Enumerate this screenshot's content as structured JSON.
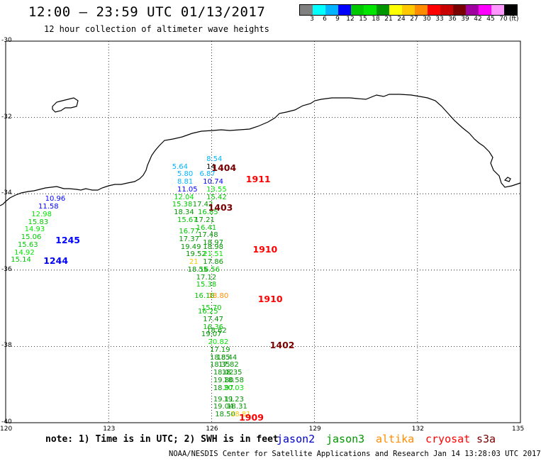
{
  "header": {
    "title": "12:00 – 23:59 UTC 01/13/2017",
    "subtitle": "12 hour collection of altimeter wave heights"
  },
  "colorbar": {
    "colors": [
      "#808080",
      "#00ffff",
      "#00b4ff",
      "#0000ff",
      "#00c800",
      "#00e600",
      "#009600",
      "#ffff00",
      "#ffc800",
      "#ff8c00",
      "#ff0000",
      "#c80000",
      "#780000",
      "#a000a0",
      "#ff00ff",
      "#ff96ff",
      "#000000"
    ],
    "ticks": [
      "3",
      "6",
      "9",
      "12",
      "15",
      "18",
      "21",
      "24",
      "27",
      "30",
      "33",
      "36",
      "39",
      "42",
      "45",
      "70"
    ],
    "unit": "(ft)"
  },
  "axes": {
    "x_ticks": [
      "120",
      "123",
      "126",
      "129",
      "132",
      "135"
    ],
    "y_ticks": [
      "-30",
      "-32",
      "-34",
      "-36",
      "-38",
      "-40"
    ],
    "lon_range": [
      120,
      135
    ],
    "lat_range": [
      -40,
      -30
    ]
  },
  "wave_heights": [
    {
      "t": "8.54",
      "c": "#00b4ff",
      "lon": 125.85,
      "lat": -33.1
    },
    {
      "t": "5.64",
      "c": "#00b4ff",
      "lon": 124.85,
      "lat": -33.3
    },
    {
      "t": "14",
      "c": "#000000",
      "lon": 125.85,
      "lat": -33.3
    },
    {
      "t": "5.80",
      "c": "#00b4ff",
      "lon": 125.0,
      "lat": -33.5
    },
    {
      "t": "6.87",
      "c": "#00b4ff",
      "lon": 125.65,
      "lat": -33.5
    },
    {
      "t": "8.81",
      "c": "#00b4ff",
      "lon": 125.0,
      "lat": -33.7
    },
    {
      "t": "10.74",
      "c": "#0000ff",
      "lon": 125.75,
      "lat": -33.7
    },
    {
      "t": "11.05",
      "c": "#0000ff",
      "lon": 125.0,
      "lat": -33.9
    },
    {
      "t": "13.55",
      "c": "#00e600",
      "lon": 125.85,
      "lat": -33.9
    },
    {
      "t": "12.04",
      "c": "#00e600",
      "lon": 124.9,
      "lat": -34.1
    },
    {
      "t": "15.42",
      "c": "#00c800",
      "lon": 125.85,
      "lat": -34.1
    },
    {
      "t": "15.38",
      "c": "#00c800",
      "lon": 124.85,
      "lat": -34.3
    },
    {
      "t": "17.42",
      "c": "#009600",
      "lon": 125.45,
      "lat": -34.3
    },
    {
      "t": "18.34",
      "c": "#009600",
      "lon": 124.9,
      "lat": -34.5
    },
    {
      "t": "16.85",
      "c": "#00c800",
      "lon": 125.6,
      "lat": -34.5
    },
    {
      "t": "15.67",
      "c": "#00c800",
      "lon": 125.0,
      "lat": -34.7
    },
    {
      "t": "17.21",
      "c": "#009600",
      "lon": 125.5,
      "lat": -34.7
    },
    {
      "t": "16.41",
      "c": "#00c800",
      "lon": 125.55,
      "lat": -34.9
    },
    {
      "t": "16.77",
      "c": "#00c800",
      "lon": 125.05,
      "lat": -35.0
    },
    {
      "t": "17.48",
      "c": "#009600",
      "lon": 125.6,
      "lat": -35.1
    },
    {
      "t": "17.37",
      "c": "#009600",
      "lon": 125.05,
      "lat": -35.2
    },
    {
      "t": "18.97",
      "c": "#009600",
      "lon": 125.75,
      "lat": -35.3
    },
    {
      "t": "19.49",
      "c": "#009600",
      "lon": 125.1,
      "lat": -35.4
    },
    {
      "t": "18.98",
      "c": "#009600",
      "lon": 125.75,
      "lat": -35.4
    },
    {
      "t": "19.52",
      "c": "#009600",
      "lon": 125.25,
      "lat": -35.6
    },
    {
      "t": "21.51",
      "c": "#00e600",
      "lon": 125.75,
      "lat": -35.6
    },
    {
      "t": "17.86",
      "c": "#009600",
      "lon": 125.75,
      "lat": -35.8
    },
    {
      "t": "21",
      "c": "#ffc800",
      "lon": 125.35,
      "lat": -35.8
    },
    {
      "t": "18.55",
      "c": "#009600",
      "lon": 125.3,
      "lat": -36.0
    },
    {
      "t": "16.56",
      "c": "#00c800",
      "lon": 125.65,
      "lat": -36.0
    },
    {
      "t": "17.12",
      "c": "#009600",
      "lon": 125.55,
      "lat": -36.2
    },
    {
      "t": "15.38",
      "c": "#00c800",
      "lon": 125.55,
      "lat": -36.4
    },
    {
      "t": "16.18",
      "c": "#00c800",
      "lon": 125.5,
      "lat": -36.7
    },
    {
      "t": "18.80",
      "c": "#ff8c00",
      "lon": 125.9,
      "lat": -36.7
    },
    {
      "t": "15.70",
      "c": "#00c800",
      "lon": 125.7,
      "lat": -37.0
    },
    {
      "t": "16.25",
      "c": "#00c800",
      "lon": 125.6,
      "lat": -37.1
    },
    {
      "t": "17.47",
      "c": "#009600",
      "lon": 125.75,
      "lat": -37.3
    },
    {
      "t": "16.36",
      "c": "#00c800",
      "lon": 125.75,
      "lat": -37.5
    },
    {
      "t": "18.62",
      "c": "#009600",
      "lon": 125.85,
      "lat": -37.6
    },
    {
      "t": "19.07",
      "c": "#009600",
      "lon": 125.7,
      "lat": -37.7
    },
    {
      "t": "20.82",
      "c": "#00e600",
      "lon": 125.9,
      "lat": -37.9
    },
    {
      "t": "17.19",
      "c": "#009600",
      "lon": 125.95,
      "lat": -38.1
    },
    {
      "t": "18.85",
      "c": "#009600",
      "lon": 125.95,
      "lat": -38.3
    },
    {
      "t": "18.44",
      "c": "#009600",
      "lon": 126.15,
      "lat": -38.3
    },
    {
      "t": "18.35",
      "c": "#009600",
      "lon": 125.95,
      "lat": -38.5
    },
    {
      "t": "17.82",
      "c": "#009600",
      "lon": 126.2,
      "lat": -38.5
    },
    {
      "t": "18.02",
      "c": "#009600",
      "lon": 126.05,
      "lat": -38.7
    },
    {
      "t": "18.35",
      "c": "#009600",
      "lon": 126.3,
      "lat": -38.7
    },
    {
      "t": "19.80",
      "c": "#009600",
      "lon": 126.05,
      "lat": -38.9
    },
    {
      "t": "18.58",
      "c": "#009600",
      "lon": 126.35,
      "lat": -38.9
    },
    {
      "t": "18.97",
      "c": "#009600",
      "lon": 126.05,
      "lat": -39.1
    },
    {
      "t": "20.03",
      "c": "#00e600",
      "lon": 126.35,
      "lat": -39.1
    },
    {
      "t": "19.11",
      "c": "#009600",
      "lon": 126.05,
      "lat": -39.4
    },
    {
      "t": "19.23",
      "c": "#009600",
      "lon": 126.35,
      "lat": -39.4
    },
    {
      "t": "19.04",
      "c": "#009600",
      "lon": 126.05,
      "lat": -39.6
    },
    {
      "t": "18.31",
      "c": "#009600",
      "lon": 126.45,
      "lat": -39.6
    },
    {
      "t": "18.50",
      "c": "#009600",
      "lon": 126.1,
      "lat": -39.8
    },
    {
      "t": "18.81",
      "c": "#ffc800",
      "lon": 126.55,
      "lat": -39.8
    },
    {
      "t": "10.96",
      "c": "#0000ff",
      "lon": 121.15,
      "lat": -34.15
    },
    {
      "t": "11.58",
      "c": "#0000ff",
      "lon": 120.95,
      "lat": -34.35
    },
    {
      "t": "12.98",
      "c": "#00e600",
      "lon": 120.75,
      "lat": -34.55
    },
    {
      "t": "15.83",
      "c": "#00c800",
      "lon": 120.65,
      "lat": -34.75
    },
    {
      "t": "14.93",
      "c": "#00e600",
      "lon": 120.55,
      "lat": -34.95
    },
    {
      "t": "15.06",
      "c": "#00c800",
      "lon": 120.45,
      "lat": -35.15
    },
    {
      "t": "15.63",
      "c": "#00c800",
      "lon": 120.35,
      "lat": -35.35
    },
    {
      "t": "14.92",
      "c": "#00e600",
      "lon": 120.25,
      "lat": -35.55
    },
    {
      "t": "15.14",
      "c": "#00c800",
      "lon": 120.15,
      "lat": -35.75
    }
  ],
  "pass_labels": [
    {
      "t": "1404",
      "c": "#780000",
      "lon": 126.0,
      "lat": -33.3
    },
    {
      "t": "1911",
      "c": "#ff0000",
      "lon": 127.0,
      "lat": -33.6
    },
    {
      "t": "1403",
      "c": "#780000",
      "lon": 125.9,
      "lat": -34.35
    },
    {
      "t": "1910",
      "c": "#ff0000",
      "lon": 127.2,
      "lat": -35.45
    },
    {
      "t": "1910",
      "c": "#ff0000",
      "lon": 127.35,
      "lat": -36.75
    },
    {
      "t": "1402",
      "c": "#780000",
      "lon": 127.7,
      "lat": -37.95
    },
    {
      "t": "1245",
      "c": "#0000ff",
      "lon": 121.45,
      "lat": -35.2
    },
    {
      "t": "1244",
      "c": "#0000ff",
      "lon": 121.1,
      "lat": -35.75
    },
    {
      "t": "1909",
      "c": "#ff0000",
      "lon": 126.8,
      "lat": -39.85
    }
  ],
  "note": "note: 1) Time is in UTC; 2) SWH is in feet",
  "satellites": [
    {
      "name": "jason2",
      "color": "#0000c8"
    },
    {
      "name": "jason3",
      "color": "#009600"
    },
    {
      "name": "altika",
      "color": "#ff8c00"
    },
    {
      "name": "cryosat",
      "color": "#ff0000"
    },
    {
      "name": "s3a",
      "color": "#780000"
    }
  ],
  "footer": "NOAA/NESDIS Center for Satellite Applications and Research   Jan 14 13:28:03 UTC 2017"
}
